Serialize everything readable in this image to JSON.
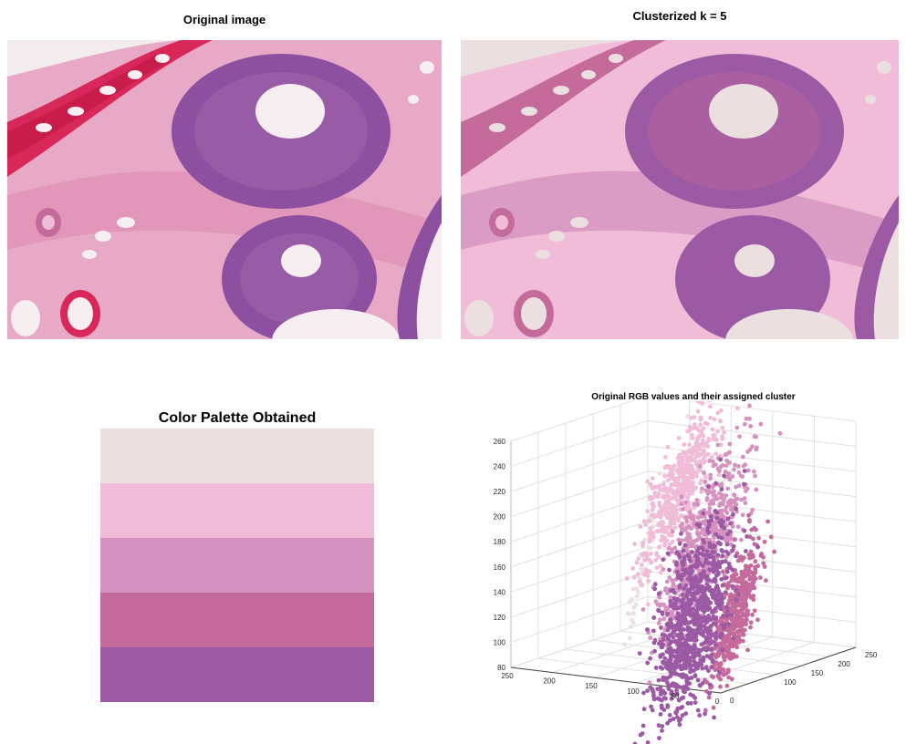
{
  "panels": {
    "original": {
      "title": "Original image"
    },
    "clustered": {
      "title": "Clusterized k = 5"
    }
  },
  "chart_data": [
    {
      "type": "table",
      "title": "Color Palette Obtained",
      "colors": [
        "#ebdfdf",
        "#f0bcd7",
        "#d592bf",
        "#c46b9c",
        "#9b5aa3"
      ]
    },
    {
      "type": "scatter",
      "title": "Original RGB values and their assigned cluster",
      "dimensions": 3,
      "axes": {
        "z": {
          "ticks": [
            80,
            100,
            120,
            140,
            160,
            180,
            200,
            220,
            240,
            260
          ],
          "range": [
            80,
            260
          ]
        },
        "x": {
          "ticks": [
            250,
            200,
            150,
            100,
            50,
            0
          ],
          "range": [
            0,
            250
          ]
        },
        "y": {
          "ticks": [
            0,
            100,
            150,
            200,
            250
          ],
          "range": [
            0,
            250
          ]
        }
      },
      "grid": true,
      "legend": "none",
      "series_colors": [
        "#ebdfdf",
        "#f0bcd7",
        "#d592bf",
        "#c46b9c",
        "#9b5aa3"
      ]
    }
  ],
  "colors": {
    "background": "#ffffff",
    "tissue_bg": "#e8a9c4",
    "tissue_pink": "#de6f9c",
    "tissue_red": "#d8285a",
    "nucleus_purple": "#8d4f9f",
    "lumen_white": "#f6eef0"
  }
}
